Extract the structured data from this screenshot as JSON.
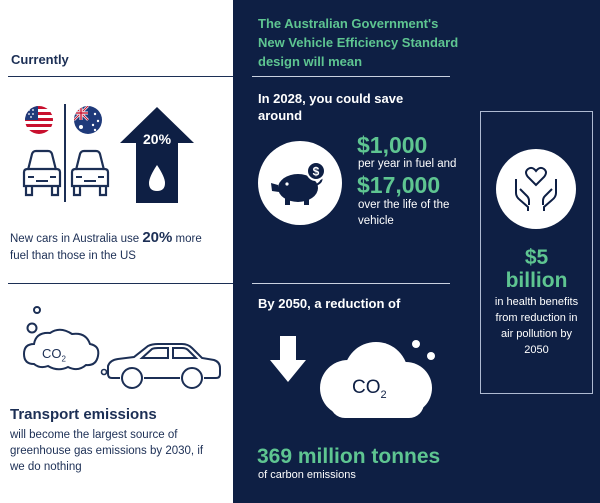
{
  "header": {
    "currently": "Currently",
    "title_lines": [
      "The Australian Government's",
      "New Vehicle Efficiency Standard",
      "design will mean"
    ]
  },
  "efficiency": {
    "badge": "20%",
    "text_before": "New cars in Australia use ",
    "highlight": "20%",
    "text_after": " more",
    "line2": "fuel than those in the US"
  },
  "savings": {
    "heading_line1": "In 2028, you could save",
    "heading_line2": "around",
    "fuel_amount": "$1,000",
    "fuel_caption": "per year in fuel and",
    "life_amount": "$17,000",
    "life_caption_1": "over the life of the",
    "life_caption_2": "vehicle"
  },
  "health": {
    "amount_1": "$5",
    "amount_2": "billion",
    "lines": [
      "in health benefits",
      "from reduction in",
      "air pollution by",
      "2050"
    ]
  },
  "emissions": {
    "heading": "By 2050, a reduction of",
    "co2": "CO",
    "co2_sub": "2",
    "co2_small": "CO",
    "co2_small_sub": "2",
    "amount": "369 million tonnes",
    "caption": "of carbon emissions"
  },
  "transport": {
    "title": "Transport emissions",
    "lines": [
      "will become the largest source of",
      "greenhouse gas emissions by 2030, if",
      "we do nothing"
    ]
  },
  "colors": {
    "navy": "#0e1f44",
    "green": "#5ec591",
    "text": "#1c2f55"
  }
}
